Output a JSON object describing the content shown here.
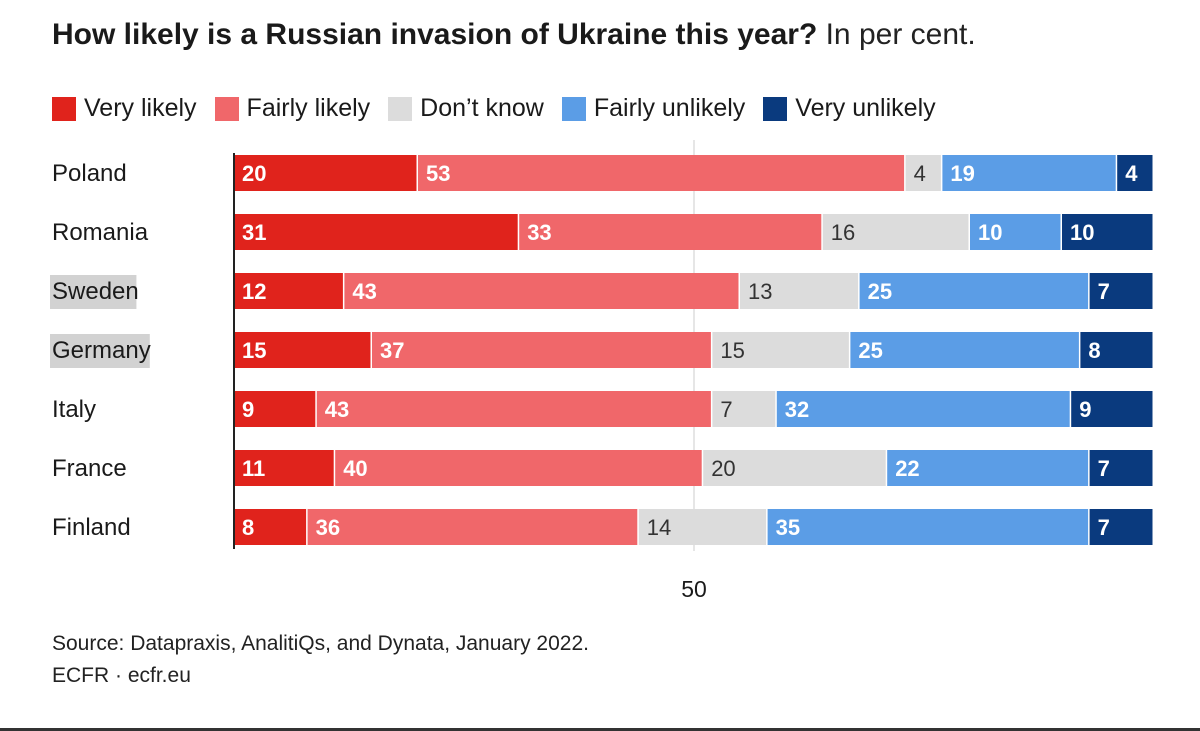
{
  "title": {
    "bold": "How likely is a Russian invasion of Ukraine this year?",
    "light": " In per cent."
  },
  "legend": [
    {
      "label": "Very likely",
      "color": "#e0231c"
    },
    {
      "label": "Fairly likely",
      "color": "#f0676a"
    },
    {
      "label": "Don’t know",
      "color": "#dcdcdc"
    },
    {
      "label": "Fairly unlikely",
      "color": "#5b9de6"
    },
    {
      "label": "Very unlikely",
      "color": "#0a3a7e"
    }
  ],
  "chart_data": {
    "type": "bar",
    "orientation": "horizontal",
    "stacked": true,
    "categories": [
      "Poland",
      "Romania",
      "Sweden",
      "Germany",
      "Italy",
      "France",
      "Finland"
    ],
    "highlighted_categories": [
      "Sweden",
      "Germany"
    ],
    "series": [
      {
        "name": "Very likely",
        "values": [
          20,
          31,
          12,
          15,
          9,
          11,
          8
        ]
      },
      {
        "name": "Fairly likely",
        "values": [
          53,
          33,
          43,
          37,
          43,
          40,
          36
        ]
      },
      {
        "name": "Don’t know",
        "values": [
          4,
          16,
          13,
          15,
          7,
          20,
          14
        ]
      },
      {
        "name": "Fairly unlikely",
        "values": [
          19,
          10,
          25,
          25,
          32,
          22,
          35
        ]
      },
      {
        "name": "Very unlikely",
        "values": [
          4,
          10,
          7,
          8,
          9,
          7,
          7
        ]
      }
    ],
    "xlim": [
      0,
      100
    ],
    "xticks": [
      50
    ],
    "xtick_labels": [
      "50"
    ]
  },
  "source": {
    "line1": "Source: Datapraxis, AnalitiQs, and Dynata, January 2022.",
    "line2": "ECFR · ecfr.eu"
  }
}
